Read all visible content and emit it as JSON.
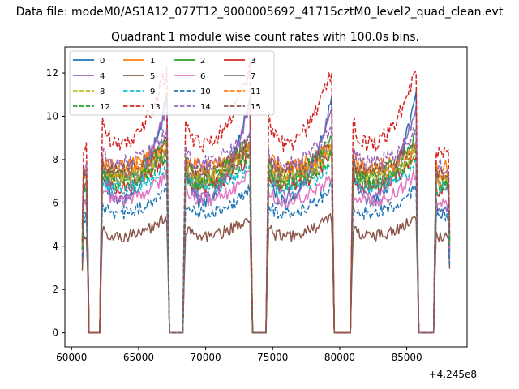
{
  "figure": {
    "suptitle": "Data file: modeM0/AS1A12_077T12_9000005692_41715cztM0_level2_quad_clean.evt"
  },
  "chart_data": {
    "type": "line",
    "title": "Quadrant 1 module wise count rates with 100.0s bins.",
    "xlabel": "",
    "ylabel": "",
    "x_offset_label": "+4.245e8",
    "xlim": [
      59500,
      89500
    ],
    "ylim": [
      -0.65,
      13.2
    ],
    "xticks": [
      60000,
      65000,
      70000,
      75000,
      80000,
      85000
    ],
    "xtick_labels": [
      "60000",
      "65000",
      "70000",
      "75000",
      "80000",
      "85000"
    ],
    "yticks": [
      0,
      2,
      4,
      6,
      8,
      10,
      12
    ],
    "ytick_labels": [
      "0",
      "2",
      "4",
      "6",
      "8",
      "10",
      "12"
    ],
    "bin_seconds": 100,
    "x_start": 60800,
    "x_end": 88200,
    "data_intervals": [
      [
        60800,
        61200
      ],
      [
        62200,
        67200
      ],
      [
        68400,
        73400
      ],
      [
        74600,
        79500
      ],
      [
        80900,
        85800
      ],
      [
        87100,
        88200
      ]
    ],
    "legend": {
      "location": "upper-left",
      "columns": 4,
      "entries": [
        "0",
        "1",
        "2",
        "3",
        "4",
        "5",
        "6",
        "7",
        "8",
        "9",
        "10",
        "11",
        "12",
        "13",
        "14",
        "15"
      ]
    },
    "series": [
      {
        "name": "0",
        "color": "#1f77b4",
        "dash": "solid",
        "base": 5.6,
        "peak": 11.2
      },
      {
        "name": "1",
        "color": "#ff7f0e",
        "dash": "solid",
        "base": 7.6,
        "peak": 8.8
      },
      {
        "name": "2",
        "color": "#2ca02c",
        "dash": "solid",
        "base": 7.1,
        "peak": 9.2
      },
      {
        "name": "3",
        "color": "#d62728",
        "dash": "solid",
        "base": 6.6,
        "peak": 8.3
      },
      {
        "name": "4",
        "color": "#9467bd",
        "dash": "solid",
        "base": 5.9,
        "peak": 10.8
      },
      {
        "name": "5",
        "color": "#8c564b",
        "dash": "solid",
        "base": 4.4,
        "peak": 5.4
      },
      {
        "name": "6",
        "color": "#e377c2",
        "dash": "solid",
        "base": 6.0,
        "peak": 7.4
      },
      {
        "name": "7",
        "color": "#7f7f7f",
        "dash": "solid",
        "base": 6.9,
        "peak": 8.6
      },
      {
        "name": "8",
        "color": "#bcbd22",
        "dash": "dashed",
        "base": 7.0,
        "peak": 8.5
      },
      {
        "name": "9",
        "color": "#17becf",
        "dash": "dashed",
        "base": 6.6,
        "peak": 7.8
      },
      {
        "name": "10",
        "color": "#1f77b4",
        "dash": "dashed",
        "base": 5.4,
        "peak": 6.8
      },
      {
        "name": "11",
        "color": "#ff7f0e",
        "dash": "dashed",
        "base": 7.3,
        "peak": 8.6
      },
      {
        "name": "12",
        "color": "#2ca02c",
        "dash": "dashed",
        "base": 6.8,
        "peak": 8.3
      },
      {
        "name": "13",
        "color": "#d62728",
        "dash": "dashed",
        "base": 8.4,
        "peak": 12.4
      },
      {
        "name": "14",
        "color": "#9467bd",
        "dash": "dashed",
        "base": 7.7,
        "peak": 9.4
      },
      {
        "name": "15",
        "color": "#8c564b",
        "dash": "dashed",
        "base": 7.4,
        "peak": 8.9
      }
    ]
  }
}
